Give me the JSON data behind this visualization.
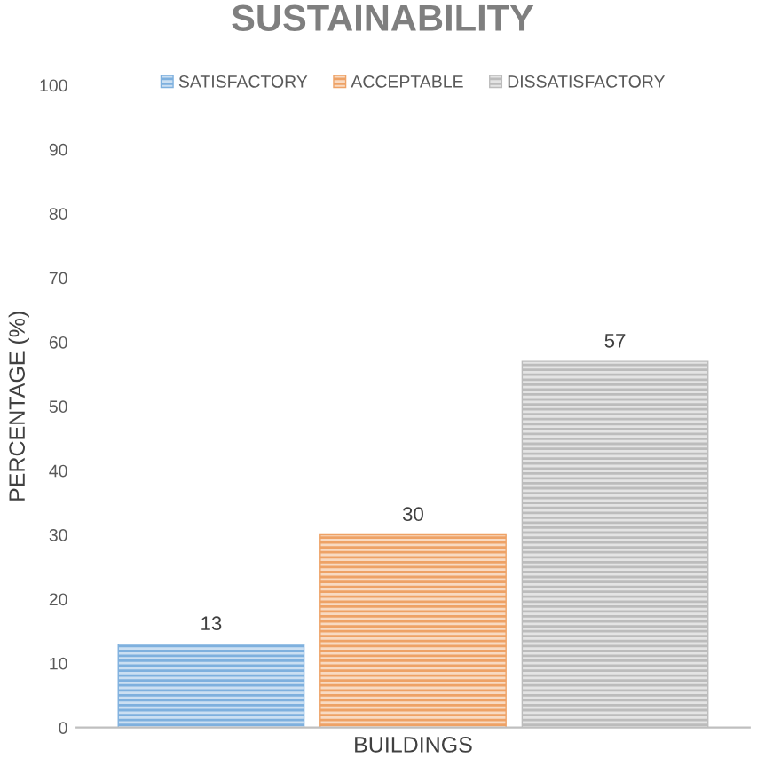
{
  "chart_data": {
    "type": "bar",
    "title": "SUSTAINABILITY",
    "ylabel": "PERCENTAGE (%)",
    "categories": [
      "BUILDINGS"
    ],
    "series": [
      {
        "name": "SATISFACTORY",
        "color": "#7eb0de",
        "values": [
          13
        ]
      },
      {
        "name": "ACCEPTABLE",
        "color": "#eea266",
        "values": [
          30
        ]
      },
      {
        "name": "DISSATISFACTORY",
        "color": "#bcbcbc",
        "values": [
          57
        ]
      }
    ],
    "ylim": [
      0,
      100
    ],
    "yticks": [
      0,
      10,
      20,
      30,
      40,
      50,
      60,
      70,
      80,
      90,
      100
    ],
    "data_labels": true,
    "legend": "top",
    "grid": false
  }
}
